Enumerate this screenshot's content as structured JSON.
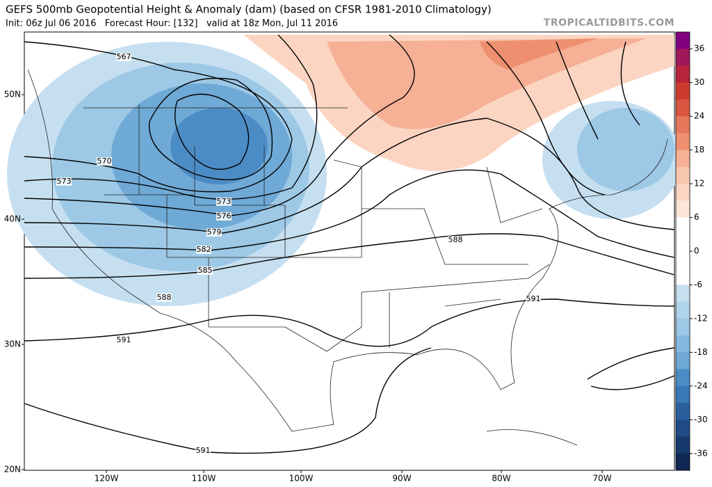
{
  "header": {
    "title": "GEFS 500mb Geopotential Height & Anomaly (dam) (based on CFSR 1981-2010 Climatology)",
    "subtitle": "Init: 06z Jul 06 2016   Forecast Hour: [132]   valid at 18z Mon, Jul 11 2016",
    "site": "TROPICALTIDBITS.COM"
  },
  "map": {
    "lat_labels": [
      "50N",
      "40N",
      "30N",
      "20N"
    ],
    "lon_labels": [
      "120W",
      "110W",
      "100W",
      "90W",
      "80W",
      "70W"
    ],
    "contour_labels": [
      "567",
      "570",
      "573",
      "573",
      "576",
      "579",
      "582",
      "585",
      "588",
      "588",
      "591",
      "591",
      "591"
    ]
  },
  "colorbar": {
    "ticks": [
      36,
      30,
      24,
      18,
      12,
      6,
      0,
      -6,
      -12,
      -18,
      -24,
      -30,
      -36
    ]
  }
}
